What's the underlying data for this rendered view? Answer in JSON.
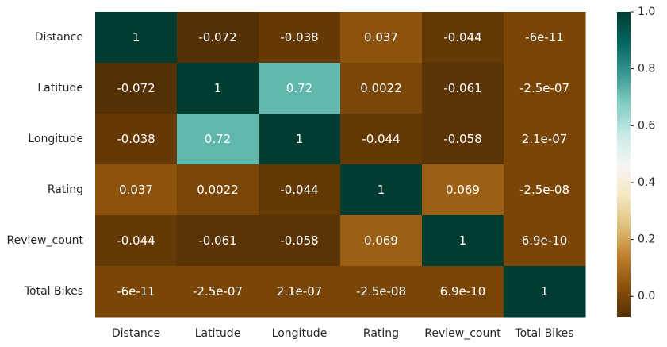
{
  "chart_data": {
    "type": "heatmap",
    "title": "",
    "xlabel": "",
    "ylabel": "",
    "x_labels": [
      "Distance",
      "Latitude",
      "Longitude",
      "Rating",
      "Review_count",
      "Total Bikes"
    ],
    "y_labels": [
      "Distance",
      "Latitude",
      "Longitude",
      "Rating",
      "Review_count",
      "Total Bikes"
    ],
    "values": [
      [
        1,
        -0.072,
        -0.038,
        0.037,
        -0.044,
        -6e-11
      ],
      [
        -0.072,
        1,
        0.72,
        0.0022,
        -0.061,
        -2.5e-07
      ],
      [
        -0.038,
        0.72,
        1,
        -0.044,
        -0.058,
        2.1e-07
      ],
      [
        0.037,
        0.0022,
        -0.044,
        1,
        0.069,
        -2.5e-08
      ],
      [
        -0.044,
        -0.061,
        -0.058,
        0.069,
        1,
        6.9e-10
      ],
      [
        -6e-11,
        -2.5e-07,
        2.1e-07,
        -2.5e-08,
        6.9e-10,
        1
      ]
    ],
    "annotations": [
      [
        "1",
        "-0.072",
        "-0.038",
        "0.037",
        "-0.044",
        "-6e-11"
      ],
      [
        "-0.072",
        "1",
        "0.72",
        "0.0022",
        "-0.061",
        "-2.5e-07"
      ],
      [
        "-0.038",
        "0.72",
        "1",
        "-0.044",
        "-0.058",
        "2.1e-07"
      ],
      [
        "0.037",
        "0.0022",
        "-0.044",
        "1",
        "0.069",
        "-2.5e-08"
      ],
      [
        "-0.044",
        "-0.061",
        "-0.058",
        "0.069",
        "1",
        "6.9e-10"
      ],
      [
        "-6e-11",
        "-2.5e-07",
        "2.1e-07",
        "-2.5e-08",
        "6.9e-10",
        "1"
      ]
    ],
    "colormap": "BrBG",
    "vmin": -0.072,
    "vmax": 1.0,
    "colorbar_ticks": [
      0.0,
      0.2,
      0.4,
      0.6,
      0.8,
      1.0
    ],
    "colorbar_tick_labels": [
      "0.0",
      "0.2",
      "0.4",
      "0.6",
      "0.8",
      "1.0"
    ],
    "colors": {
      "tick_text": "#262626",
      "text_on_dark": "#ffffff",
      "text_on_light": "#262626"
    }
  }
}
